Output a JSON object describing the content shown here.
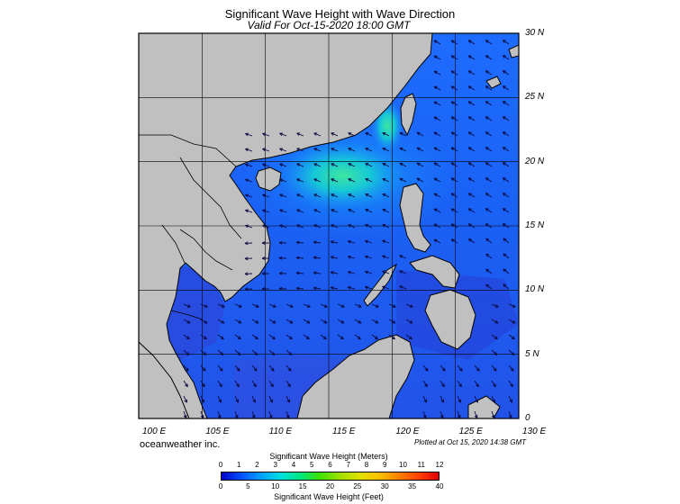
{
  "header": {
    "title": "Significant Wave Height with Wave Direction",
    "subtitle": "Valid For Oct-15-2020 18:00 GMT"
  },
  "map": {
    "background": "#c0c0c0",
    "lat_labels": [
      "30 N",
      "25 N",
      "20 N",
      "15 N",
      "10 N",
      "5 N",
      "0"
    ],
    "lon_labels": [
      "100 E",
      "105 E",
      "110 E",
      "115 E",
      "120 E",
      "125 E",
      "130 E"
    ],
    "lat_range": [
      0,
      30
    ],
    "lon_range": [
      100,
      130
    ],
    "grid": true,
    "wave_arrows": "shown"
  },
  "footer": {
    "credit": "oceanweather inc.",
    "plotted": "Plotted at Oct 15, 2020 14:38 GMT"
  },
  "legend": {
    "meters_title": "Significant Wave Height (Meters)",
    "feet_title": "Significant Wave Height (Feet)",
    "meters_ticks": [
      "0",
      "1",
      "2",
      "3",
      "4",
      "5",
      "6",
      "7",
      "8",
      "9",
      "10",
      "11",
      "12"
    ],
    "feet_ticks": [
      "0",
      "5",
      "10",
      "15",
      "20",
      "25",
      "30",
      "35",
      "40"
    ],
    "colors": [
      "#0000c8",
      "#0050ff",
      "#00a0ff",
      "#00e0e0",
      "#00e880",
      "#40e000",
      "#a0e000",
      "#e0e000",
      "#ffc000",
      "#ff8000",
      "#ff4000",
      "#e00000"
    ]
  }
}
